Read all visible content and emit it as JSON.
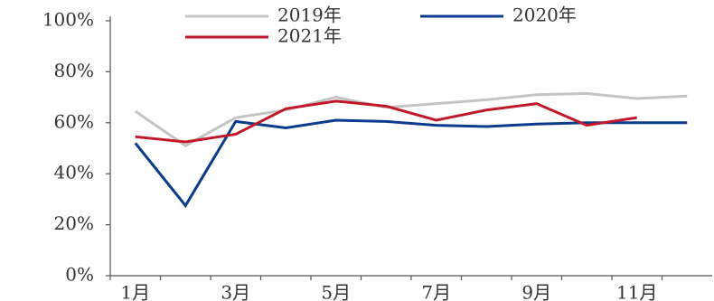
{
  "chart_data": {
    "type": "line",
    "categories": [
      "1月",
      null,
      "3月",
      null,
      "5月",
      null,
      "7月",
      null,
      "9月",
      null,
      "11月",
      null
    ],
    "series": [
      {
        "name": "2019年",
        "color": "#c4c4c4",
        "values": [
          64.5,
          51,
          62,
          65,
          70,
          66,
          67.5,
          69,
          71,
          71.5,
          69.5,
          70.5
        ]
      },
      {
        "name": "2020年",
        "color": "#0b3c8c",
        "values": [
          52,
          27.5,
          60.5,
          58,
          61,
          60.5,
          59,
          58.5,
          59.5,
          60,
          60,
          60
        ]
      },
      {
        "name": "2021年",
        "color": "#c0182a",
        "values": [
          54.5,
          52.5,
          55.5,
          65.5,
          68.5,
          66.5,
          61,
          65,
          67.5,
          59,
          62,
          null
        ]
      }
    ],
    "ylim": [
      0,
      100
    ],
    "yticks": [
      {
        "value": 0,
        "label": "0%"
      },
      {
        "value": 20,
        "label": "20%"
      },
      {
        "value": 40,
        "label": "40%"
      },
      {
        "value": 60,
        "label": "60%"
      },
      {
        "value": 80,
        "label": "80%"
      },
      {
        "value": 100,
        "label": "100%"
      }
    ],
    "grid": false
  }
}
